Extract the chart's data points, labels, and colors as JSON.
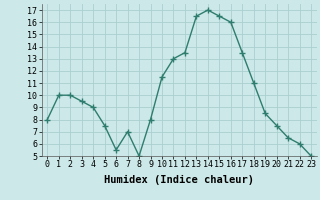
{
  "x": [
    0,
    1,
    2,
    3,
    4,
    5,
    6,
    7,
    8,
    9,
    10,
    11,
    12,
    13,
    14,
    15,
    16,
    17,
    18,
    19,
    20,
    21,
    22,
    23
  ],
  "y": [
    8,
    10,
    10,
    9.5,
    9,
    7.5,
    5.5,
    7,
    5,
    8,
    11.5,
    13,
    13.5,
    16.5,
    17,
    16.5,
    16,
    13.5,
    11,
    8.5,
    7.5,
    6.5,
    6,
    5
  ],
  "line_color": "#2e7d6e",
  "marker": "+",
  "marker_size": 4,
  "marker_color": "#2e7d6e",
  "bg_color": "#cce8e8",
  "grid_color": "#aacfcf",
  "xlabel": "Humidex (Indice chaleur)",
  "xlim": [
    -0.5,
    23.5
  ],
  "ylim": [
    5,
    17.5
  ],
  "yticks": [
    5,
    6,
    7,
    8,
    9,
    10,
    11,
    12,
    13,
    14,
    15,
    16,
    17
  ],
  "xtick_labels": [
    "0",
    "1",
    "2",
    "3",
    "4",
    "5",
    "6",
    "7",
    "8",
    "9",
    "10",
    "11",
    "12",
    "13",
    "14",
    "15",
    "16",
    "17",
    "18",
    "19",
    "20",
    "21",
    "22",
    "23"
  ],
  "tick_fontsize": 6,
  "xlabel_fontsize": 7.5,
  "line_width": 1.0
}
